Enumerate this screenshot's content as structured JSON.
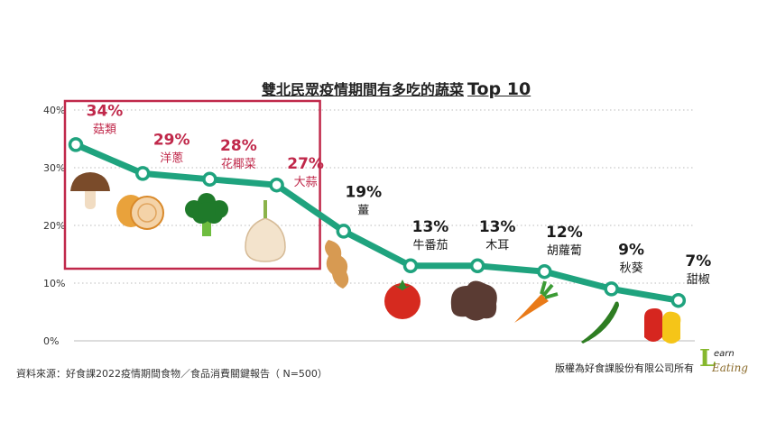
{
  "title": {
    "main": "雙北民眾疫情期間有多吃的蔬菜",
    "highlight": "Top 10"
  },
  "source": "資料來源：好食課2022疫情期間食物／食品消費關鍵報告（ N=500）",
  "copyright": "版權為好食課股份有限公司所有",
  "logo": {
    "letter": "L",
    "word1": "earn",
    "word2": "Eating"
  },
  "colors": {
    "line": "#1fa37e",
    "highlight": "#c0284a",
    "label": "#1a1a1a",
    "grid": "#bbbbbb"
  },
  "chart_data": {
    "type": "line",
    "title": "雙北民眾疫情期間有多吃的蔬菜 Top 10",
    "categories": [
      "菇類",
      "洋蔥",
      "花椰菜",
      "大蒜",
      "薑",
      "牛番茄",
      "木耳",
      "胡蘿蔔",
      "秋葵",
      "甜椒"
    ],
    "values": [
      34,
      29,
      28,
      27,
      19,
      13,
      13,
      12,
      9,
      7
    ],
    "value_labels": [
      "34%",
      "29%",
      "28%",
      "27%",
      "19%",
      "13%",
      "13%",
      "12%",
      "9%",
      "7%"
    ],
    "highlighted_top": 4,
    "y_ticks": [
      "0%",
      "10%",
      "20%",
      "30%",
      "40%"
    ],
    "y_tick_values": [
      0,
      10,
      20,
      30,
      40
    ],
    "ylim": [
      0,
      40
    ],
    "grid": true,
    "icons": [
      "mushroom-icon",
      "onion-icon",
      "broccoli-icon",
      "garlic-icon",
      "ginger-icon",
      "tomato-icon",
      "wood-ear-icon",
      "carrot-icon",
      "okra-icon",
      "bell-pepper-icon"
    ]
  }
}
